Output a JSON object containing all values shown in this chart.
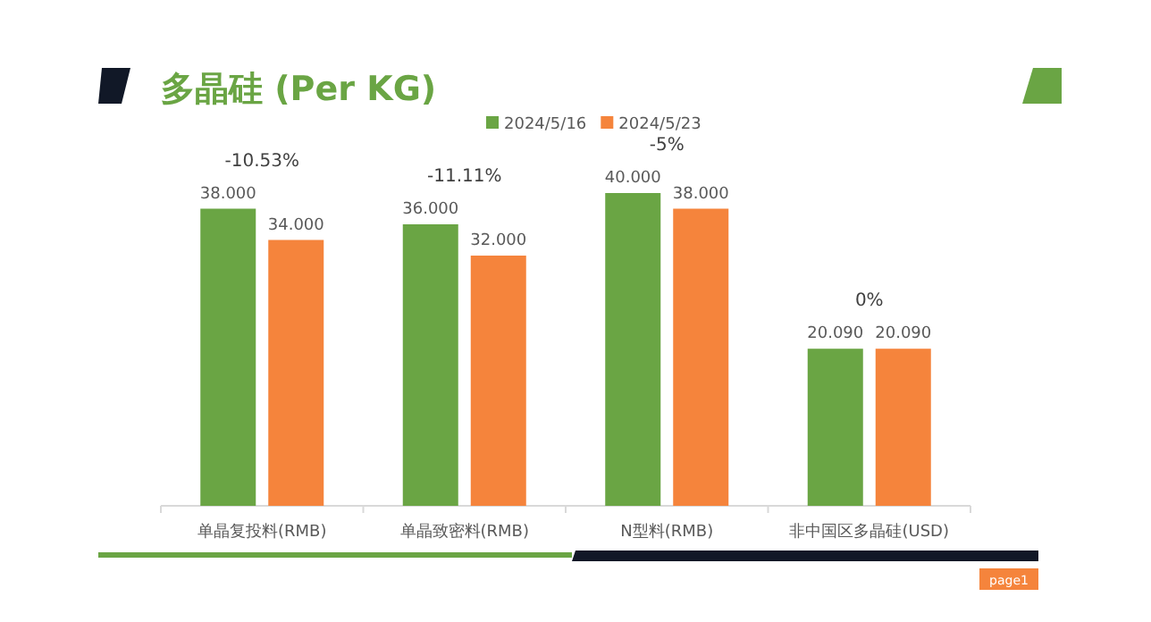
{
  "chart_data": {
    "type": "bar",
    "title": "多晶硅 (Per KG)",
    "categories": [
      "单晶复投料(RMB)",
      "单晶致密料(RMB)",
      "N型料(RMB)",
      "非中国区多晶硅(USD)"
    ],
    "series": [
      {
        "name": "2024/5/16",
        "color": "#6aa544",
        "values": [
          38,
          36,
          40,
          20.09
        ],
        "value_labels": [
          "38.000",
          "36.000",
          "40.000",
          "20.090"
        ]
      },
      {
        "name": "2024/5/23",
        "color": "#f5843c",
        "values": [
          34,
          32,
          38,
          20.09
        ],
        "value_labels": [
          "34.000",
          "32.000",
          "38.000",
          "20.090"
        ]
      }
    ],
    "annotations": [
      "-10.53%",
      "-11.11%",
      "-5%",
      "0%",
      "page1"
    ],
    "legend": "top"
  }
}
